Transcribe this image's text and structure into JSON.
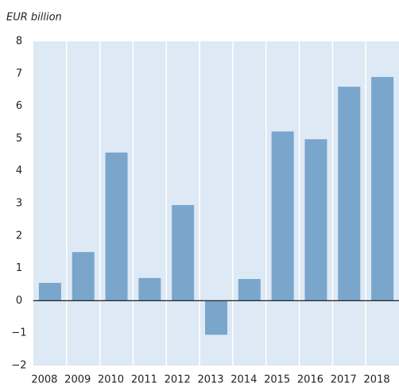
{
  "chart_data": {
    "type": "bar",
    "y_label": "EUR billion",
    "categories": [
      "2008",
      "2009",
      "2010",
      "2011",
      "2012",
      "2013",
      "2014",
      "2015",
      "2016",
      "2017",
      "2018"
    ],
    "values": [
      0.55,
      1.5,
      4.57,
      0.7,
      2.95,
      -1.05,
      0.67,
      5.22,
      4.98,
      6.6,
      6.9
    ],
    "color": "#7aa6cc",
    "background": "#dde9f4",
    "ylim": [
      -2,
      8
    ],
    "yticks": [
      {
        "value": -2,
        "label": "−2"
      },
      {
        "value": -1,
        "label": "−1"
      },
      0,
      1,
      2,
      3,
      4,
      5,
      6,
      7,
      8
    ],
    "grid": false
  }
}
